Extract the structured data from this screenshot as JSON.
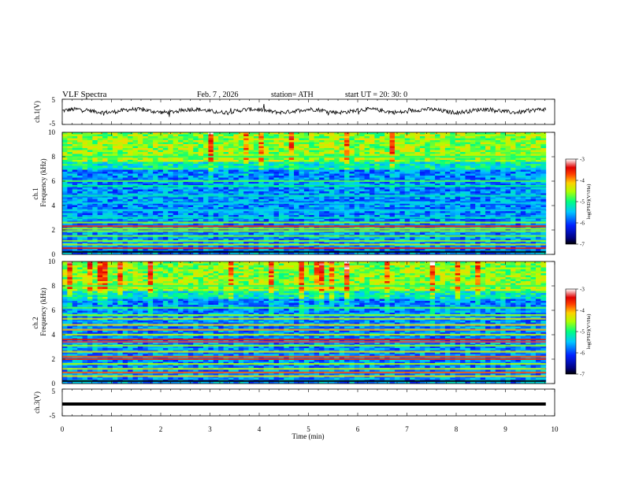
{
  "header": {
    "title": "VLF  Spectra",
    "date": "Feb. 7  , 2026",
    "station": "station= ATH",
    "start_ut": "start  UT  =    20: 30: 0"
  },
  "chart_data": [
    {
      "type": "line",
      "name": "ch1-voltage",
      "ylabel": "ch.1(V)",
      "ylim": [
        -5,
        5
      ],
      "yticks": [
        "5",
        "-5"
      ],
      "xlim": [
        0,
        10
      ],
      "x_end": 9.82,
      "baseline": 0.4,
      "color": "#000000"
    },
    {
      "type": "heatmap",
      "name": "ch1-spectrogram",
      "ylabel": "ch.1\nFrequency  (kHz)",
      "ylabel_line1": "ch.1",
      "ylabel_line2": "Frequency  (kHz)",
      "ylim": [
        0,
        10
      ],
      "yticks": [
        "0",
        "2",
        "4",
        "6",
        "8",
        "10"
      ],
      "xlim": [
        0,
        10
      ],
      "x_end": 9.82,
      "bands_khz": [
        {
          "f": 0.2,
          "level": -7
        },
        {
          "f": 0.5,
          "level": -3.5
        },
        {
          "f": 0.8,
          "level": -4.4
        },
        {
          "f": 1.1,
          "level": -4.6
        },
        {
          "f": 1.5,
          "level": -4.7
        },
        {
          "f": 1.9,
          "level": -4.6
        },
        {
          "f": 2.1,
          "level": -4.5
        },
        {
          "f": 2.3,
          "level": -3.6
        },
        {
          "f": 2.6,
          "level": -4.6
        },
        {
          "f": 3.0,
          "level": -5.2
        },
        {
          "f": 3.6,
          "level": -5.4
        },
        {
          "f": 4.2,
          "level": -5.4
        },
        {
          "f": 4.8,
          "level": -5.2
        },
        {
          "f": 5.6,
          "level": -5.0
        },
        {
          "f": 6.0,
          "level": -4.8
        },
        {
          "f": 8.0,
          "level": -4.9
        }
      ]
    },
    {
      "type": "heatmap",
      "name": "ch2-spectrogram",
      "ylabel": "ch.2\nFrequency  (kHz)",
      "ylabel_line1": "ch.2",
      "ylabel_line2": "Frequency  (kHz)",
      "ylim": [
        0,
        10
      ],
      "yticks": [
        "0",
        "2",
        "4",
        "6",
        "8",
        "10"
      ],
      "xlim": [
        0,
        10
      ],
      "x_end": 9.82,
      "bands_khz": [
        {
          "f": 0.2,
          "level": -7
        },
        {
          "f": 0.6,
          "level": -4.2
        },
        {
          "f": 0.9,
          "level": -3.8
        },
        {
          "f": 1.2,
          "level": -4.4
        },
        {
          "f": 1.6,
          "level": -4.5
        },
        {
          "f": 2.0,
          "level": -3.6
        },
        {
          "f": 2.2,
          "level": -3.8
        },
        {
          "f": 2.6,
          "level": -4.3
        },
        {
          "f": 3.1,
          "level": -4.6
        },
        {
          "f": 3.4,
          "level": -3.3
        },
        {
          "f": 3.6,
          "level": -3.5
        },
        {
          "f": 4.0,
          "level": -4.4
        },
        {
          "f": 4.4,
          "level": -4.0
        },
        {
          "f": 4.8,
          "level": -4.2
        },
        {
          "f": 5.3,
          "level": -4.3
        },
        {
          "f": 5.6,
          "level": -4.6
        },
        {
          "f": 6.2,
          "level": -4.8
        },
        {
          "f": 8.0,
          "level": -4.9
        }
      ]
    },
    {
      "type": "line",
      "name": "ch3-voltage",
      "ylabel": "ch.3(V)",
      "ylim": [
        -5,
        5
      ],
      "yticks": [
        "5",
        "-5"
      ],
      "xlim": [
        0,
        10
      ],
      "x_end": 9.82,
      "baseline": 0.0,
      "color": "#000000"
    }
  ],
  "colorbars": [
    {
      "label": "log(PSD)(V²/Hz)",
      "range": [
        -7,
        -3
      ],
      "ticks": [
        "-3",
        "-4",
        "-5",
        "-6",
        "-7"
      ]
    },
    {
      "label": "log(PSD)(V²/Hz)",
      "range": [
        -7,
        -3
      ],
      "ticks": [
        "-3",
        "-4",
        "-5",
        "-6",
        "-7"
      ]
    }
  ],
  "x_axis": {
    "label": "Time  (min)",
    "ticks": [
      "0",
      "1",
      "2",
      "3",
      "4",
      "5",
      "6",
      "7",
      "8",
      "9",
      "10"
    ],
    "range": [
      0,
      10
    ]
  }
}
